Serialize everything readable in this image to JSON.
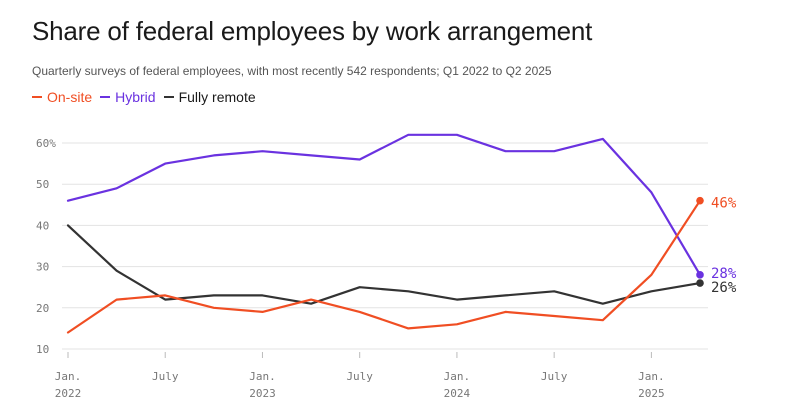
{
  "chart_data": {
    "type": "line",
    "title": "Share of federal employees by work arrangement",
    "subtitle": "Quarterly surveys of federal employees, with most recently 542 respondents; Q1 2022 to Q2 2025",
    "x": [
      "Q1 2022",
      "Q2 2022",
      "Q3 2022",
      "Q4 2022",
      "Q1 2023",
      "Q2 2023",
      "Q3 2023",
      "Q4 2023",
      "Q1 2024",
      "Q2 2024",
      "Q3 2024",
      "Q4 2024",
      "Q1 2025",
      "Q2 2025"
    ],
    "series": [
      {
        "name": "On-site",
        "color": "#f04e23",
        "values": [
          14,
          22,
          23,
          20,
          19,
          22,
          19,
          15,
          16,
          19,
          18,
          17,
          28,
          46
        ],
        "end_label": "46%"
      },
      {
        "name": "Hybrid",
        "color": "#6a32e0",
        "values": [
          46,
          49,
          55,
          57,
          58,
          57,
          56,
          62,
          62,
          58,
          58,
          61,
          48,
          28
        ],
        "end_label": "28%"
      },
      {
        "name": "Fully remote",
        "color": "#333333",
        "values": [
          40,
          29,
          22,
          23,
          23,
          21,
          25,
          24,
          22,
          23,
          24,
          21,
          24,
          26
        ],
        "end_label": "26%"
      }
    ],
    "ylim": [
      10,
      60
    ],
    "y_ticks": [
      {
        "value": 60,
        "label": "60%"
      },
      {
        "value": 50,
        "label": "50"
      },
      {
        "value": 40,
        "label": "40"
      },
      {
        "value": 30,
        "label": "30"
      },
      {
        "value": 20,
        "label": "20"
      },
      {
        "value": 10,
        "label": "10"
      }
    ],
    "x_ticks": [
      {
        "index": 0,
        "line1": "Jan.",
        "line2": "2022"
      },
      {
        "index": 2,
        "line1": "July",
        "line2": ""
      },
      {
        "index": 4,
        "line1": "Jan.",
        "line2": "2023"
      },
      {
        "index": 6,
        "line1": "July",
        "line2": ""
      },
      {
        "index": 8,
        "line1": "Jan.",
        "line2": "2024"
      },
      {
        "index": 10,
        "line1": "July",
        "line2": ""
      },
      {
        "index": 12,
        "line1": "Jan.",
        "line2": "2025"
      }
    ],
    "grid": true,
    "legend": "top-left"
  }
}
